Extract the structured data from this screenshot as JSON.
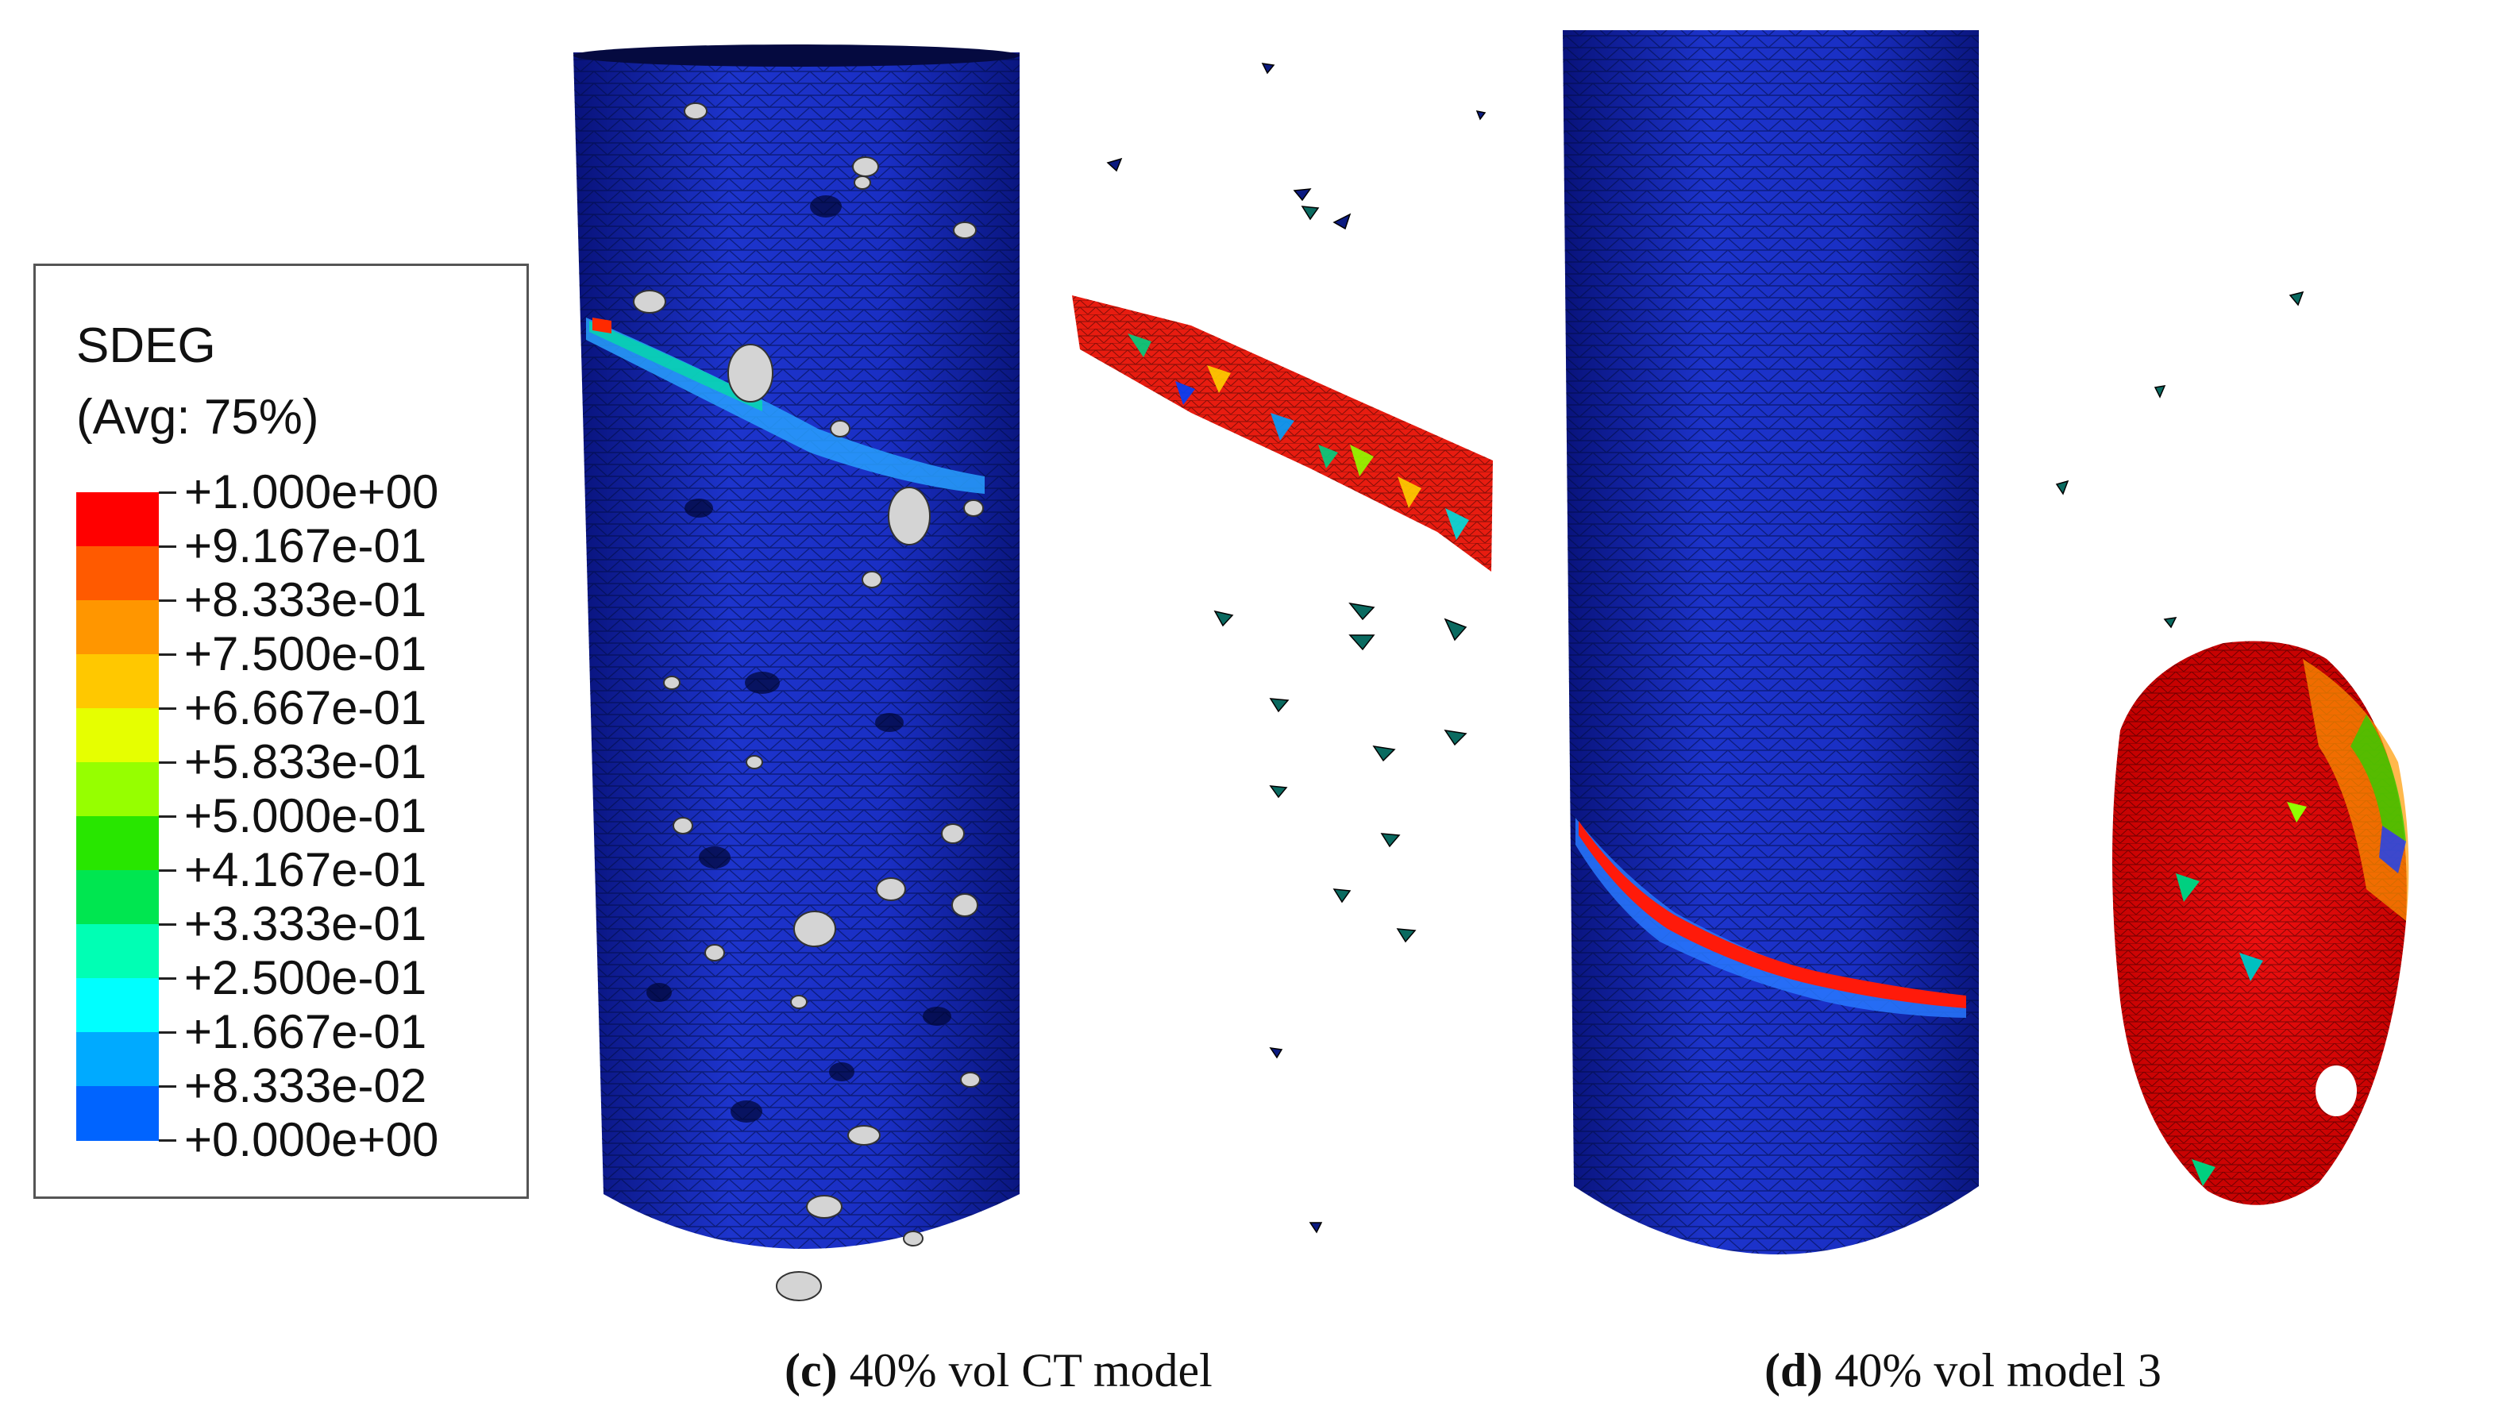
{
  "legend": {
    "variable": "SDEG",
    "averaging": "(Avg: 75%)",
    "levels": [
      {
        "label": "+1.000e+00",
        "color": "#ff0000"
      },
      {
        "label": "+9.167e-01",
        "color": "#ff5a00"
      },
      {
        "label": "+8.333e-01",
        "color": "#ff9600"
      },
      {
        "label": "+7.500e-01",
        "color": "#ffc800"
      },
      {
        "label": "+6.667e-01",
        "color": "#e6ff00"
      },
      {
        "label": "+5.833e-01",
        "color": "#96ff00"
      },
      {
        "label": "+5.000e-01",
        "color": "#28e600"
      },
      {
        "label": "+4.167e-01",
        "color": "#00e650"
      },
      {
        "label": "+3.333e-01",
        "color": "#00ffb4"
      },
      {
        "label": "+2.500e-01",
        "color": "#00ffff"
      },
      {
        "label": "+1.667e-01",
        "color": "#00aaff"
      },
      {
        "label": "+8.333e-02",
        "color": "#0064ff"
      },
      {
        "label": "+0.000e+00",
        "color": "#0000ff"
      }
    ]
  },
  "captions": [
    {
      "letter": "(c)",
      "text": "40% vol CT model"
    },
    {
      "letter": "(d)",
      "text": "40% vol model 3"
    }
  ],
  "colors": {
    "mesh_base": "#1a2fc4",
    "mesh_dark": "#0c1a8a",
    "damage_high": "#ff0000",
    "pore": "#d8d8d8"
  }
}
